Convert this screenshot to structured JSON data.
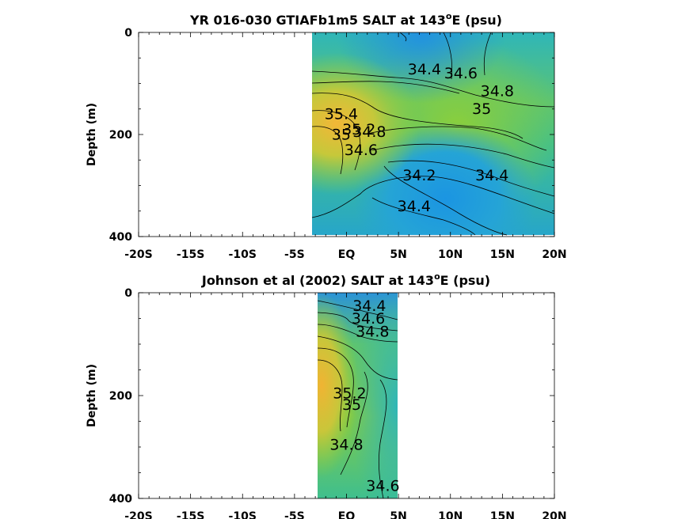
{
  "colors": {
    "low": "#2b8fe0",
    "mid_low": "#1fb0c4",
    "mid": "#3fc082",
    "mid_high": "#8ccf3a",
    "high": "#f0b433"
  },
  "chart_data": [
    {
      "type": "heatmap",
      "title_main": "YR 016-030 GTIAFb1m5 SALT at 143",
      "title_sup": "o",
      "title_tail": "E (psu)",
      "xlabel": "",
      "ylabel": "Depth (m)",
      "x_ticks": [
        "-20S",
        "-15S",
        "-10S",
        "-5S",
        "EQ",
        "5N",
        "10N",
        "15N",
        "20N"
      ],
      "x_tick_values": [
        -20,
        -15,
        -10,
        -5,
        0,
        5,
        10,
        15,
        20
      ],
      "y_ticks": [
        "0",
        "200",
        "400"
      ],
      "y_tick_values": [
        0,
        200,
        400
      ],
      "xlim": [
        -20,
        20
      ],
      "ylim": [
        0,
        400
      ],
      "y_reversed": true,
      "data_extent_x": [
        -3,
        20
      ],
      "contour_labels": [
        {
          "text": "34.4",
          "x": 7.5,
          "y": 82
        },
        {
          "text": "34.6",
          "x": 11,
          "y": 90
        },
        {
          "text": "34.8",
          "x": 14.5,
          "y": 125
        },
        {
          "text": "35",
          "x": 13,
          "y": 160
        },
        {
          "text": "35.4",
          "x": -0.5,
          "y": 170
        },
        {
          "text": "35.2",
          "x": 1.2,
          "y": 200
        },
        {
          "text": "35",
          "x": -0.5,
          "y": 210
        },
        {
          "text": "34.8",
          "x": 2.2,
          "y": 205
        },
        {
          "text": "34.6",
          "x": 1.4,
          "y": 240
        },
        {
          "text": "34.2",
          "x": 7,
          "y": 290
        },
        {
          "text": "34.4",
          "x": 14,
          "y": 290
        },
        {
          "text": "34.4",
          "x": 6.5,
          "y": 350
        }
      ]
    },
    {
      "type": "heatmap",
      "title_main": "Johnson et al (2002) SALT at 143",
      "title_sup": "o",
      "title_tail": "E (psu)",
      "xlabel": "",
      "ylabel": "Depth (m)",
      "x_ticks": [
        "-20S",
        "-15S",
        "-10S",
        "-5S",
        "EQ",
        "5N",
        "10N",
        "15N",
        "20N"
      ],
      "x_tick_values": [
        -20,
        -15,
        -10,
        -5,
        0,
        5,
        10,
        15,
        20
      ],
      "y_ticks": [
        "0",
        "200",
        "400"
      ],
      "y_tick_values": [
        0,
        200,
        400
      ],
      "xlim": [
        -20,
        20
      ],
      "ylim": [
        0,
        400
      ],
      "y_reversed": true,
      "data_extent_x": [
        -2.5,
        5.2
      ],
      "contour_labels": [
        {
          "text": "34.4",
          "x": 2.2,
          "y": 35
        },
        {
          "text": "34.6",
          "x": 2.1,
          "y": 60
        },
        {
          "text": "34.8",
          "x": 2.5,
          "y": 85
        },
        {
          "text": "35.2",
          "x": 0.3,
          "y": 205
        },
        {
          "text": "35",
          "x": 0.5,
          "y": 228
        },
        {
          "text": "34.8",
          "x": 0,
          "y": 305
        },
        {
          "text": "34.6",
          "x": 3.5,
          "y": 385
        }
      ]
    }
  ]
}
